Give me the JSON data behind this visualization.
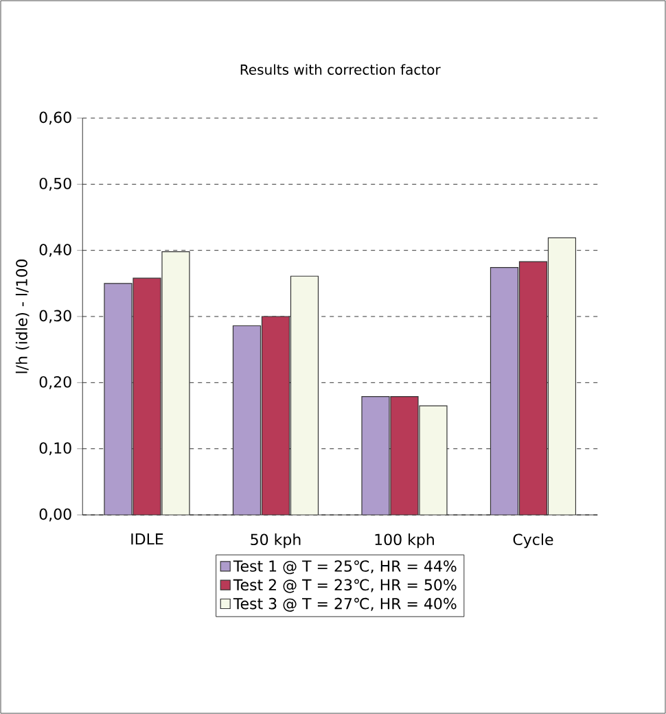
{
  "chart_data": {
    "type": "bar",
    "title": "Results with correction factor",
    "ylabel": "l/h (idle) - l/100",
    "categories": [
      "IDLE",
      "50 kph",
      "100 kph",
      "Cycle"
    ],
    "series": [
      {
        "name": "Test 1 @ T = 25℃, HR = 44%",
        "color": "#ae9ccc",
        "values": [
          0.35,
          0.286,
          0.179,
          0.374
        ]
      },
      {
        "name": "Test 2 @ T = 23℃, HR = 50%",
        "color": "#b83a57",
        "values": [
          0.358,
          0.3,
          0.179,
          0.383
        ]
      },
      {
        "name": "Test 3 @ T = 27℃, HR = 40%",
        "color": "#f5f8e8",
        "values": [
          0.398,
          0.361,
          0.165,
          0.419
        ]
      }
    ],
    "ylim": [
      0,
      0.6
    ],
    "yticks": [
      {
        "value": 0,
        "label": "0,00"
      },
      {
        "value": 0.1,
        "label": "0,10"
      },
      {
        "value": 0.2,
        "label": "0,20"
      },
      {
        "value": 0.3,
        "label": "0,30"
      },
      {
        "value": 0.4,
        "label": "0,40"
      },
      {
        "value": 0.5,
        "label": "0,50"
      },
      {
        "value": 0.6,
        "label": "0,60"
      }
    ],
    "grid": "y",
    "legend": "bottom"
  }
}
